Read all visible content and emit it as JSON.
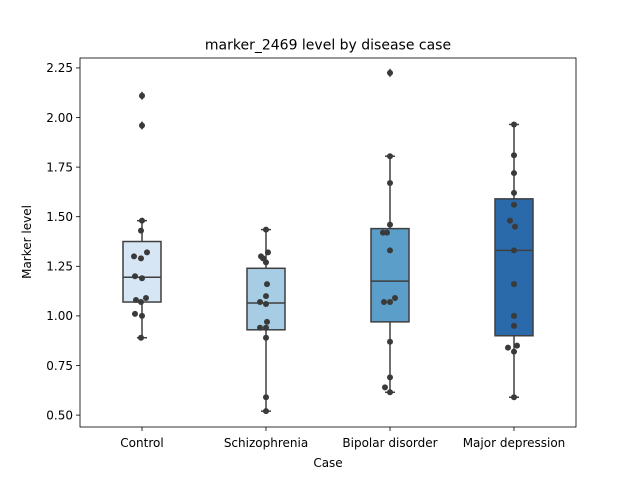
{
  "chart_data": {
    "type": "box",
    "title": "marker_2469 level by disease case",
    "xlabel": "Case",
    "ylabel": "Marker level",
    "ylim": [
      0.44,
      2.3
    ],
    "yticks": [
      0.5,
      0.75,
      1.0,
      1.25,
      1.5,
      1.75,
      2.0,
      2.25
    ],
    "ytick_labels": [
      "0.50",
      "0.75",
      "1.00",
      "1.25",
      "1.50",
      "1.75",
      "2.00",
      "2.25"
    ],
    "categories": [
      "Control",
      "Schizophrenia",
      "Bipolar disorder",
      "Major depression"
    ],
    "colors": [
      "#d6e6f4",
      "#a6cde3",
      "#5a9ec9",
      "#2a6aaa"
    ],
    "boxes": [
      {
        "q1": 1.07,
        "median": 1.195,
        "q3": 1.375,
        "whisker_low": 0.89,
        "whisker_high": 1.48,
        "outliers": [
          1.96,
          2.11
        ]
      },
      {
        "q1": 0.93,
        "median": 1.065,
        "q3": 1.24,
        "whisker_low": 0.52,
        "whisker_high": 1.435,
        "outliers": []
      },
      {
        "q1": 0.97,
        "median": 1.175,
        "q3": 1.44,
        "whisker_low": 0.615,
        "whisker_high": 1.805,
        "outliers": [
          2.225
        ]
      },
      {
        "q1": 0.9,
        "median": 1.33,
        "q3": 1.59,
        "whisker_low": 0.59,
        "whisker_high": 1.965,
        "outliers": []
      }
    ],
    "points": [
      [
        {
          "y": 2.11,
          "dx": 0
        },
        {
          "y": 1.96,
          "dx": 0
        },
        {
          "y": 1.48,
          "dx": 0
        },
        {
          "y": 1.43,
          "dx": -1
        },
        {
          "y": 1.32,
          "dx": 5
        },
        {
          "y": 1.3,
          "dx": -8
        },
        {
          "y": 1.29,
          "dx": -1
        },
        {
          "y": 1.2,
          "dx": -7
        },
        {
          "y": 1.19,
          "dx": 0
        },
        {
          "y": 1.09,
          "dx": 4
        },
        {
          "y": 1.08,
          "dx": -6
        },
        {
          "y": 1.07,
          "dx": -1
        },
        {
          "y": 1.01,
          "dx": -7
        },
        {
          "y": 1.0,
          "dx": 0
        },
        {
          "y": 0.89,
          "dx": -1
        }
      ],
      [
        {
          "y": 1.435,
          "dx": 0
        },
        {
          "y": 1.32,
          "dx": 2
        },
        {
          "y": 1.3,
          "dx": -5
        },
        {
          "y": 1.29,
          "dx": -3
        },
        {
          "y": 1.27,
          "dx": 0
        },
        {
          "y": 1.16,
          "dx": 1
        },
        {
          "y": 1.1,
          "dx": 0
        },
        {
          "y": 1.07,
          "dx": -6
        },
        {
          "y": 1.06,
          "dx": 0
        },
        {
          "y": 0.97,
          "dx": 1
        },
        {
          "y": 0.94,
          "dx": -6
        },
        {
          "y": 0.94,
          "dx": 0
        },
        {
          "y": 0.89,
          "dx": 0
        },
        {
          "y": 0.59,
          "dx": 0
        },
        {
          "y": 0.52,
          "dx": 0
        }
      ],
      [
        {
          "y": 2.225,
          "dx": 0
        },
        {
          "y": 1.805,
          "dx": 0
        },
        {
          "y": 1.67,
          "dx": 0
        },
        {
          "y": 1.46,
          "dx": 0
        },
        {
          "y": 1.42,
          "dx": -7
        },
        {
          "y": 1.42,
          "dx": -3
        },
        {
          "y": 1.33,
          "dx": 0
        },
        {
          "y": 1.09,
          "dx": 5
        },
        {
          "y": 1.07,
          "dx": -6
        },
        {
          "y": 1.07,
          "dx": 0
        },
        {
          "y": 0.87,
          "dx": 0
        },
        {
          "y": 0.69,
          "dx": 0
        },
        {
          "y": 0.64,
          "dx": -5
        },
        {
          "y": 0.615,
          "dx": 0
        }
      ],
      [
        {
          "y": 1.965,
          "dx": 0
        },
        {
          "y": 1.81,
          "dx": 0
        },
        {
          "y": 1.72,
          "dx": 0
        },
        {
          "y": 1.62,
          "dx": 0
        },
        {
          "y": 1.56,
          "dx": 0
        },
        {
          "y": 1.48,
          "dx": -4
        },
        {
          "y": 1.45,
          "dx": 1
        },
        {
          "y": 1.33,
          "dx": 0
        },
        {
          "y": 1.16,
          "dx": 0
        },
        {
          "y": 1.0,
          "dx": 0
        },
        {
          "y": 0.95,
          "dx": 0
        },
        {
          "y": 0.85,
          "dx": 3
        },
        {
          "y": 0.84,
          "dx": -6
        },
        {
          "y": 0.82,
          "dx": 0
        },
        {
          "y": 0.59,
          "dx": 0
        }
      ]
    ]
  }
}
